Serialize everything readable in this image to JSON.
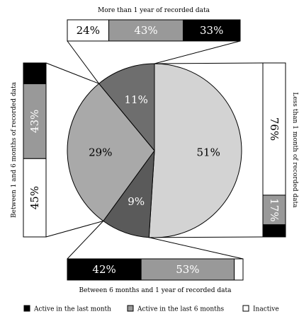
{
  "chart_data": {
    "type": "pie",
    "pie": {
      "slices": [
        {
          "id": "less_1_month",
          "value": 51,
          "label": "51%",
          "color": "#d3d3d3"
        },
        {
          "id": "6m_1y",
          "value": 9,
          "label": "9%",
          "color": "#5a5a5a"
        },
        {
          "id": "1m_6m",
          "value": 29,
          "label": "29%",
          "color": "#a9a9a9"
        },
        {
          "id": "more_1y",
          "value": 11,
          "label": "11%",
          "color": "#6e6e6e"
        }
      ]
    },
    "breakdowns": [
      {
        "slice": "more_1y",
        "title": "More than 1 year of recorded data",
        "segments": [
          {
            "category": "inactive",
            "value": 24,
            "label": "24%"
          },
          {
            "category": "active_6m",
            "value": 43,
            "label": "43%"
          },
          {
            "category": "active_month",
            "value": 33,
            "label": "33%"
          }
        ]
      },
      {
        "slice": "1m_6m",
        "title": "Between 1 and 6 months of recorded data",
        "segments": [
          {
            "category": "inactive",
            "value": 45,
            "label": "45%"
          },
          {
            "category": "active_6m",
            "value": 43,
            "label": "43%"
          },
          {
            "category": "active_month",
            "value": 12,
            "label": ""
          }
        ]
      },
      {
        "slice": "less_1_month",
        "title": "Less than 1 month of recorded data",
        "segments": [
          {
            "category": "inactive",
            "value": 76,
            "label": "76%"
          },
          {
            "category": "active_6m",
            "value": 17,
            "label": "17%"
          },
          {
            "category": "active_month",
            "value": 7,
            "label": ""
          }
        ]
      },
      {
        "slice": "6m_1y",
        "title": "Between 6 months and 1 year of recorded data",
        "segments": [
          {
            "category": "active_month",
            "value": 42,
            "label": "42%"
          },
          {
            "category": "active_6m",
            "value": 53,
            "label": "53%"
          },
          {
            "category": "inactive",
            "value": 5,
            "label": ""
          }
        ]
      }
    ],
    "legend": {
      "position": "bottom",
      "entries": [
        {
          "category": "active_month",
          "label": "Active in the last month",
          "color": "#000000"
        },
        {
          "category": "active_6m",
          "label": "Active in the last 6 months",
          "color": "#999999"
        },
        {
          "category": "inactive",
          "label": "Inactive",
          "color": "#ffffff"
        }
      ]
    }
  }
}
